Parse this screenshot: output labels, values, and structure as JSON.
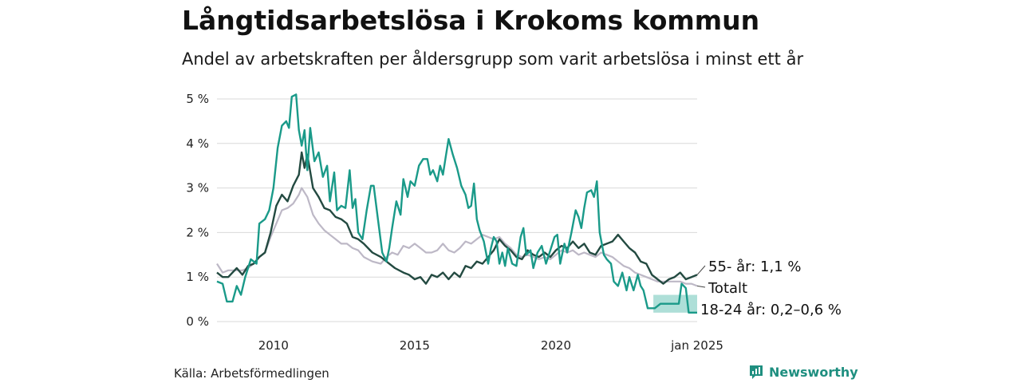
{
  "header": {
    "title": "Långtidsarbetslösa i Krokoms kommun",
    "subtitle": "Andel av arbetskraften per åldersgrupp som varit arbetslösa i minst ett år"
  },
  "footer": {
    "source": "Källa: Arbetsförmedlingen",
    "brand": "Newsworthy",
    "brand_icon": "newsworthy-logo-icon"
  },
  "colors": {
    "age_55": "#234a41",
    "total": "#bdb8c6",
    "age_18_24": "#1a9a89",
    "age_18_24_band": "#6cc5b8",
    "grid": "#d9d9d9"
  },
  "chart_data": {
    "type": "line",
    "x_unit": "decimal year",
    "y_unit": "%",
    "xlim": [
      2008.0,
      2025.0
    ],
    "ylim": [
      0,
      5
    ],
    "y_ticks": [
      0,
      1,
      2,
      3,
      4,
      5
    ],
    "y_tick_labels": [
      "0 %",
      "1 %",
      "2 %",
      "3 %",
      "4 %",
      "5 %"
    ],
    "x_ticks": [
      2010,
      2015,
      2020,
      2025.0
    ],
    "x_tick_labels": [
      "2010",
      "2015",
      "2020",
      "jan 2025"
    ],
    "grid": "horizontal",
    "legend": "end labels",
    "series": [
      {
        "name": "55- år",
        "end_label": "55- år: 1,1 %",
        "points": [
          [
            2008.0,
            1.1
          ],
          [
            2008.2,
            1.0
          ],
          [
            2008.4,
            1.0
          ],
          [
            2008.7,
            1.2
          ],
          [
            2008.9,
            1.05
          ],
          [
            2009.1,
            1.25
          ],
          [
            2009.3,
            1.3
          ],
          [
            2009.5,
            1.45
          ],
          [
            2009.7,
            1.55
          ],
          [
            2009.9,
            2.0
          ],
          [
            2010.1,
            2.6
          ],
          [
            2010.3,
            2.85
          ],
          [
            2010.5,
            2.7
          ],
          [
            2010.7,
            3.05
          ],
          [
            2010.9,
            3.3
          ],
          [
            2011.0,
            3.8
          ],
          [
            2011.1,
            3.45
          ],
          [
            2011.2,
            3.75
          ],
          [
            2011.4,
            3.0
          ],
          [
            2011.6,
            2.8
          ],
          [
            2011.8,
            2.55
          ],
          [
            2012.0,
            2.5
          ],
          [
            2012.2,
            2.35
          ],
          [
            2012.4,
            2.3
          ],
          [
            2012.6,
            2.2
          ],
          [
            2012.8,
            1.9
          ],
          [
            2013.0,
            1.85
          ],
          [
            2013.2,
            1.75
          ],
          [
            2013.5,
            1.55
          ],
          [
            2013.8,
            1.45
          ],
          [
            2014.0,
            1.35
          ],
          [
            2014.3,
            1.2
          ],
          [
            2014.6,
            1.1
          ],
          [
            2014.8,
            1.05
          ],
          [
            2015.0,
            0.95
          ],
          [
            2015.2,
            1.0
          ],
          [
            2015.4,
            0.85
          ],
          [
            2015.6,
            1.05
          ],
          [
            2015.8,
            1.0
          ],
          [
            2016.0,
            1.1
          ],
          [
            2016.2,
            0.95
          ],
          [
            2016.4,
            1.1
          ],
          [
            2016.6,
            1.0
          ],
          [
            2016.8,
            1.25
          ],
          [
            2017.0,
            1.2
          ],
          [
            2017.2,
            1.35
          ],
          [
            2017.4,
            1.3
          ],
          [
            2017.6,
            1.45
          ],
          [
            2017.8,
            1.6
          ],
          [
            2018.0,
            1.85
          ],
          [
            2018.2,
            1.7
          ],
          [
            2018.4,
            1.6
          ],
          [
            2018.6,
            1.45
          ],
          [
            2018.8,
            1.4
          ],
          [
            2019.0,
            1.6
          ],
          [
            2019.2,
            1.5
          ],
          [
            2019.4,
            1.45
          ],
          [
            2019.6,
            1.55
          ],
          [
            2019.8,
            1.45
          ],
          [
            2020.0,
            1.6
          ],
          [
            2020.2,
            1.7
          ],
          [
            2020.4,
            1.65
          ],
          [
            2020.6,
            1.8
          ],
          [
            2020.8,
            1.65
          ],
          [
            2021.0,
            1.75
          ],
          [
            2021.2,
            1.55
          ],
          [
            2021.4,
            1.5
          ],
          [
            2021.6,
            1.7
          ],
          [
            2021.8,
            1.75
          ],
          [
            2022.0,
            1.8
          ],
          [
            2022.2,
            1.95
          ],
          [
            2022.4,
            1.8
          ],
          [
            2022.6,
            1.65
          ],
          [
            2022.8,
            1.55
          ],
          [
            2023.0,
            1.35
          ],
          [
            2023.2,
            1.3
          ],
          [
            2023.4,
            1.05
          ],
          [
            2023.6,
            0.95
          ],
          [
            2023.8,
            0.85
          ],
          [
            2024.0,
            0.95
          ],
          [
            2024.2,
            1.0
          ],
          [
            2024.4,
            1.1
          ],
          [
            2024.6,
            0.95
          ],
          [
            2024.8,
            1.0
          ],
          [
            2025.0,
            1.05
          ]
        ]
      },
      {
        "name": "Totalt",
        "end_label": "Totalt",
        "points": [
          [
            2008.0,
            1.3
          ],
          [
            2008.2,
            1.1
          ],
          [
            2008.4,
            1.15
          ],
          [
            2008.7,
            1.15
          ],
          [
            2008.9,
            1.15
          ],
          [
            2009.1,
            1.2
          ],
          [
            2009.3,
            1.3
          ],
          [
            2009.5,
            1.45
          ],
          [
            2009.7,
            1.55
          ],
          [
            2009.9,
            1.9
          ],
          [
            2010.1,
            2.2
          ],
          [
            2010.3,
            2.5
          ],
          [
            2010.5,
            2.55
          ],
          [
            2010.7,
            2.65
          ],
          [
            2010.9,
            2.85
          ],
          [
            2011.0,
            3.0
          ],
          [
            2011.2,
            2.8
          ],
          [
            2011.4,
            2.4
          ],
          [
            2011.6,
            2.2
          ],
          [
            2011.8,
            2.05
          ],
          [
            2012.0,
            1.95
          ],
          [
            2012.2,
            1.85
          ],
          [
            2012.4,
            1.75
          ],
          [
            2012.6,
            1.75
          ],
          [
            2012.8,
            1.65
          ],
          [
            2013.0,
            1.6
          ],
          [
            2013.2,
            1.45
          ],
          [
            2013.5,
            1.35
          ],
          [
            2013.8,
            1.3
          ],
          [
            2014.0,
            1.45
          ],
          [
            2014.2,
            1.55
          ],
          [
            2014.4,
            1.5
          ],
          [
            2014.6,
            1.7
          ],
          [
            2014.8,
            1.65
          ],
          [
            2015.0,
            1.75
          ],
          [
            2015.2,
            1.65
          ],
          [
            2015.4,
            1.55
          ],
          [
            2015.6,
            1.55
          ],
          [
            2015.8,
            1.6
          ],
          [
            2016.0,
            1.75
          ],
          [
            2016.2,
            1.6
          ],
          [
            2016.4,
            1.55
          ],
          [
            2016.6,
            1.65
          ],
          [
            2016.8,
            1.8
          ],
          [
            2017.0,
            1.75
          ],
          [
            2017.2,
            1.85
          ],
          [
            2017.4,
            1.95
          ],
          [
            2017.6,
            1.9
          ],
          [
            2017.8,
            1.85
          ],
          [
            2018.0,
            1.9
          ],
          [
            2018.2,
            1.75
          ],
          [
            2018.4,
            1.65
          ],
          [
            2018.6,
            1.5
          ],
          [
            2018.8,
            1.45
          ],
          [
            2019.0,
            1.5
          ],
          [
            2019.2,
            1.45
          ],
          [
            2019.4,
            1.4
          ],
          [
            2019.6,
            1.45
          ],
          [
            2019.8,
            1.4
          ],
          [
            2020.0,
            1.5
          ],
          [
            2020.2,
            1.6
          ],
          [
            2020.4,
            1.55
          ],
          [
            2020.6,
            1.6
          ],
          [
            2020.8,
            1.5
          ],
          [
            2021.0,
            1.55
          ],
          [
            2021.2,
            1.5
          ],
          [
            2021.4,
            1.45
          ],
          [
            2021.6,
            1.55
          ],
          [
            2021.8,
            1.5
          ],
          [
            2022.0,
            1.45
          ],
          [
            2022.2,
            1.35
          ],
          [
            2022.4,
            1.25
          ],
          [
            2022.6,
            1.2
          ],
          [
            2022.8,
            1.1
          ],
          [
            2023.0,
            1.05
          ],
          [
            2023.2,
            1.0
          ],
          [
            2023.4,
            0.95
          ],
          [
            2023.6,
            0.9
          ],
          [
            2023.8,
            0.9
          ],
          [
            2024.0,
            0.9
          ],
          [
            2024.2,
            0.9
          ],
          [
            2024.4,
            0.9
          ],
          [
            2024.6,
            0.85
          ],
          [
            2024.8,
            0.85
          ],
          [
            2025.0,
            0.8
          ]
        ]
      },
      {
        "name": "18-24 år",
        "end_label": "18-24 år: 0,2–0,6 %",
        "points": [
          [
            2008.0,
            0.9
          ],
          [
            2008.2,
            0.85
          ],
          [
            2008.35,
            0.45
          ],
          [
            2008.55,
            0.45
          ],
          [
            2008.7,
            0.8
          ],
          [
            2008.85,
            0.6
          ],
          [
            2009.0,
            1.0
          ],
          [
            2009.2,
            1.4
          ],
          [
            2009.4,
            1.3
          ],
          [
            2009.5,
            2.2
          ],
          [
            2009.7,
            2.3
          ],
          [
            2009.85,
            2.5
          ],
          [
            2010.0,
            3.0
          ],
          [
            2010.15,
            3.9
          ],
          [
            2010.3,
            4.4
          ],
          [
            2010.45,
            4.5
          ],
          [
            2010.55,
            4.35
          ],
          [
            2010.65,
            5.05
          ],
          [
            2010.8,
            5.1
          ],
          [
            2010.9,
            4.3
          ],
          [
            2011.0,
            3.95
          ],
          [
            2011.1,
            4.3
          ],
          [
            2011.2,
            3.4
          ],
          [
            2011.3,
            4.35
          ],
          [
            2011.45,
            3.6
          ],
          [
            2011.6,
            3.8
          ],
          [
            2011.75,
            3.25
          ],
          [
            2011.9,
            3.5
          ],
          [
            2012.0,
            2.7
          ],
          [
            2012.15,
            3.35
          ],
          [
            2012.25,
            2.5
          ],
          [
            2012.4,
            2.6
          ],
          [
            2012.55,
            2.55
          ],
          [
            2012.7,
            3.4
          ],
          [
            2012.8,
            2.55
          ],
          [
            2012.9,
            2.75
          ],
          [
            2013.0,
            2.0
          ],
          [
            2013.15,
            1.85
          ],
          [
            2013.3,
            2.5
          ],
          [
            2013.45,
            3.05
          ],
          [
            2013.55,
            3.05
          ],
          [
            2013.7,
            2.3
          ],
          [
            2013.85,
            1.55
          ],
          [
            2014.0,
            1.35
          ],
          [
            2014.1,
            1.65
          ],
          [
            2014.2,
            2.1
          ],
          [
            2014.35,
            2.7
          ],
          [
            2014.5,
            2.4
          ],
          [
            2014.6,
            3.2
          ],
          [
            2014.75,
            2.8
          ],
          [
            2014.85,
            3.15
          ],
          [
            2015.0,
            3.05
          ],
          [
            2015.15,
            3.5
          ],
          [
            2015.3,
            3.65
          ],
          [
            2015.45,
            3.65
          ],
          [
            2015.55,
            3.3
          ],
          [
            2015.65,
            3.4
          ],
          [
            2015.8,
            3.15
          ],
          [
            2015.9,
            3.5
          ],
          [
            2016.0,
            3.3
          ],
          [
            2016.1,
            3.7
          ],
          [
            2016.2,
            4.1
          ],
          [
            2016.35,
            3.75
          ],
          [
            2016.5,
            3.45
          ],
          [
            2016.65,
            3.05
          ],
          [
            2016.8,
            2.85
          ],
          [
            2016.9,
            2.55
          ],
          [
            2017.0,
            2.6
          ],
          [
            2017.1,
            3.1
          ],
          [
            2017.2,
            2.3
          ],
          [
            2017.3,
            2.05
          ],
          [
            2017.45,
            1.8
          ],
          [
            2017.6,
            1.3
          ],
          [
            2017.7,
            1.65
          ],
          [
            2017.8,
            1.9
          ],
          [
            2017.9,
            1.8
          ],
          [
            2018.0,
            1.3
          ],
          [
            2018.1,
            1.55
          ],
          [
            2018.2,
            1.25
          ],
          [
            2018.3,
            1.65
          ],
          [
            2018.45,
            1.3
          ],
          [
            2018.6,
            1.25
          ],
          [
            2018.75,
            1.9
          ],
          [
            2018.85,
            2.1
          ],
          [
            2018.95,
            1.5
          ],
          [
            2019.1,
            1.6
          ],
          [
            2019.2,
            1.2
          ],
          [
            2019.35,
            1.55
          ],
          [
            2019.5,
            1.7
          ],
          [
            2019.65,
            1.3
          ],
          [
            2019.8,
            1.6
          ],
          [
            2019.95,
            1.9
          ],
          [
            2020.05,
            1.95
          ],
          [
            2020.15,
            1.3
          ],
          [
            2020.3,
            1.75
          ],
          [
            2020.4,
            1.55
          ],
          [
            2020.55,
            2.0
          ],
          [
            2020.7,
            2.5
          ],
          [
            2020.8,
            2.35
          ],
          [
            2020.9,
            2.1
          ],
          [
            2021.0,
            2.55
          ],
          [
            2021.1,
            2.9
          ],
          [
            2021.25,
            2.95
          ],
          [
            2021.35,
            2.8
          ],
          [
            2021.45,
            3.15
          ],
          [
            2021.55,
            2.0
          ],
          [
            2021.7,
            1.5
          ],
          [
            2021.8,
            1.4
          ],
          [
            2021.95,
            1.3
          ],
          [
            2022.05,
            0.9
          ],
          [
            2022.2,
            0.8
          ],
          [
            2022.35,
            1.1
          ],
          [
            2022.5,
            0.7
          ],
          [
            2022.6,
            1.0
          ],
          [
            2022.75,
            0.7
          ],
          [
            2022.9,
            1.05
          ],
          [
            2023.0,
            0.8
          ],
          [
            2023.1,
            0.7
          ],
          [
            2023.25,
            0.3
          ],
          [
            2023.5,
            0.3
          ],
          [
            2023.7,
            0.4
          ],
          [
            2024.0,
            0.4
          ],
          [
            2024.2,
            0.4
          ],
          [
            2024.35,
            0.4
          ],
          [
            2024.45,
            0.85
          ],
          [
            2024.6,
            0.75
          ],
          [
            2024.7,
            0.2
          ],
          [
            2025.0,
            0.2
          ]
        ]
      }
    ],
    "band": {
      "name": "18-24 år osäkerhet",
      "x_start": 2023.45,
      "x_end": 2025.0,
      "y_low": 0.2,
      "y_high": 0.6
    }
  }
}
